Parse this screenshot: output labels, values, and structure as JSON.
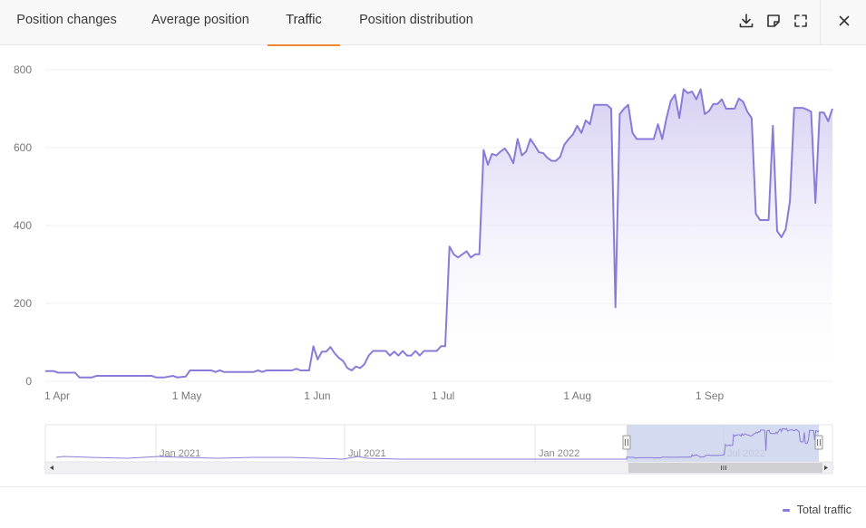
{
  "tabs": [
    {
      "label": "Position changes",
      "active": false
    },
    {
      "label": "Average position",
      "active": false
    },
    {
      "label": "Traffic",
      "active": true
    },
    {
      "label": "Position distribution",
      "active": false
    }
  ],
  "toolbar": {
    "download_icon": "download-icon",
    "note_icon": "note-icon",
    "fullscreen_icon": "fullscreen-icon",
    "close_icon": "close-icon"
  },
  "colors": {
    "accent": "#f0883a",
    "series_line": "#8b7bd8",
    "navigator_selection": "#ccd3ec"
  },
  "legend": {
    "label": "Total traffic"
  },
  "chart_data": {
    "type": "area",
    "ylim": [
      0,
      800
    ],
    "y_ticks": [
      "800",
      "600",
      "400",
      "200",
      "0"
    ],
    "x_ticks": [
      {
        "label": "1 Apr",
        "day": 0
      },
      {
        "label": "1 May",
        "day": 30
      },
      {
        "label": "1 Jun",
        "day": 61
      },
      {
        "label": "1 Jul",
        "day": 91
      },
      {
        "label": "1 Aug",
        "day": 122
      },
      {
        "label": "1 Sep",
        "day": 153
      }
    ],
    "x_range_days": [
      0,
      185
    ],
    "series": [
      {
        "name": "Total traffic",
        "points": [
          [
            0,
            26
          ],
          [
            2,
            26
          ],
          [
            3,
            22
          ],
          [
            7,
            22
          ],
          [
            8,
            10
          ],
          [
            11,
            10
          ],
          [
            12,
            14
          ],
          [
            25,
            14
          ],
          [
            26,
            10
          ],
          [
            28,
            10
          ],
          [
            30,
            14
          ],
          [
            31,
            10
          ],
          [
            33,
            12
          ],
          [
            34,
            28
          ],
          [
            39,
            28
          ],
          [
            40,
            24
          ],
          [
            41,
            28
          ],
          [
            42,
            24
          ],
          [
            49,
            24
          ],
          [
            50,
            28
          ],
          [
            51,
            24
          ],
          [
            52,
            28
          ],
          [
            58,
            28
          ],
          [
            59,
            32
          ],
          [
            60,
            28
          ],
          [
            62,
            28
          ],
          [
            63,
            90
          ],
          [
            64,
            56
          ],
          [
            65,
            76
          ],
          [
            66,
            76
          ],
          [
            67,
            88
          ],
          [
            68,
            72
          ],
          [
            69,
            60
          ],
          [
            70,
            52
          ],
          [
            71,
            34
          ],
          [
            72,
            28
          ],
          [
            73,
            38
          ],
          [
            74,
            34
          ],
          [
            75,
            44
          ],
          [
            76,
            66
          ],
          [
            77,
            78
          ],
          [
            80,
            78
          ],
          [
            81,
            66
          ],
          [
            82,
            76
          ],
          [
            83,
            66
          ],
          [
            84,
            78
          ],
          [
            85,
            66
          ],
          [
            86,
            66
          ],
          [
            87,
            78
          ],
          [
            88,
            66
          ],
          [
            89,
            78
          ],
          [
            92,
            78
          ],
          [
            93,
            90
          ],
          [
            94,
            90
          ],
          [
            95,
            346
          ],
          [
            96,
            326
          ],
          [
            97,
            318
          ],
          [
            98,
            326
          ],
          [
            99,
            334
          ],
          [
            100,
            318
          ],
          [
            101,
            326
          ],
          [
            102,
            326
          ],
          [
            103,
            594
          ],
          [
            104,
            556
          ],
          [
            105,
            584
          ],
          [
            106,
            580
          ],
          [
            107,
            590
          ],
          [
            108,
            598
          ],
          [
            109,
            582
          ],
          [
            110,
            560
          ],
          [
            111,
            622
          ],
          [
            112,
            580
          ],
          [
            113,
            590
          ],
          [
            114,
            622
          ],
          [
            115,
            606
          ],
          [
            116,
            588
          ],
          [
            117,
            586
          ],
          [
            118,
            574
          ],
          [
            119,
            566
          ],
          [
            120,
            566
          ],
          [
            121,
            576
          ],
          [
            122,
            608
          ],
          [
            123,
            622
          ],
          [
            124,
            634
          ],
          [
            125,
            656
          ],
          [
            126,
            638
          ],
          [
            127,
            670
          ],
          [
            128,
            660
          ],
          [
            129,
            710
          ],
          [
            132,
            710
          ],
          [
            133,
            700
          ],
          [
            134,
            190
          ],
          [
            135,
            686
          ],
          [
            136,
            700
          ],
          [
            137,
            710
          ],
          [
            138,
            638
          ],
          [
            139,
            622
          ],
          [
            143,
            622
          ],
          [
            144,
            660
          ],
          [
            145,
            622
          ],
          [
            146,
            676
          ],
          [
            147,
            720
          ],
          [
            148,
            736
          ],
          [
            149,
            676
          ],
          [
            150,
            750
          ],
          [
            151,
            740
          ],
          [
            152,
            744
          ],
          [
            153,
            724
          ],
          [
            154,
            750
          ],
          [
            155,
            686
          ],
          [
            156,
            694
          ],
          [
            157,
            712
          ],
          [
            158,
            712
          ],
          [
            159,
            724
          ],
          [
            160,
            700
          ],
          [
            162,
            700
          ],
          [
            163,
            726
          ],
          [
            164,
            718
          ],
          [
            165,
            692
          ],
          [
            166,
            676
          ],
          [
            167,
            430
          ],
          [
            168,
            414
          ],
          [
            170,
            414
          ],
          [
            171,
            656
          ],
          [
            172,
            386
          ],
          [
            173,
            370
          ],
          [
            174,
            390
          ],
          [
            175,
            462
          ],
          [
            176,
            702
          ],
          [
            178,
            702
          ],
          [
            179,
            698
          ],
          [
            180,
            692
          ],
          [
            181,
            458
          ],
          [
            182,
            690
          ],
          [
            183,
            690
          ],
          [
            184,
            668
          ],
          [
            185,
            700
          ]
        ]
      }
    ],
    "navigator": {
      "x_ticks": [
        "Jan 2021",
        "Jul 2021",
        "Jan 2022",
        "Jul 2022"
      ]
    },
    "grid": true,
    "legend_position": "bottom-right"
  }
}
